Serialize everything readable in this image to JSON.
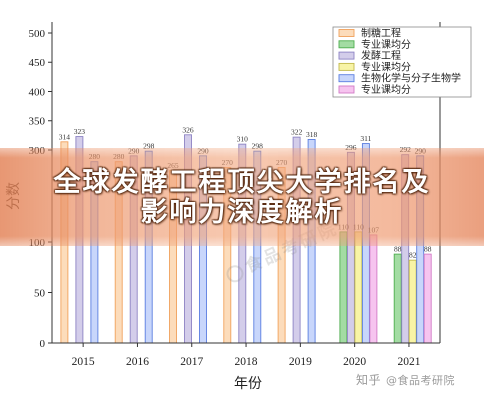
{
  "chart_data": {
    "type": "bar",
    "categories": [
      "2015",
      "2016",
      "2017",
      "2018",
      "2019",
      "2020",
      "2021"
    ],
    "xlabel": "年份",
    "ylabel": "分数",
    "ylim": [
      0,
      500
    ],
    "yticks": [
      0,
      50,
      100,
      300,
      350,
      400,
      450,
      500
    ],
    "grid": false,
    "legend_position": "top-right",
    "series": [
      {
        "name": "制糖工程",
        "color": "#fcdcbb",
        "edge": "#f0a15c",
        "values": [
          314,
          280,
          265,
          270,
          270,
          null,
          null
        ]
      },
      {
        "name": "专业课均分",
        "color": "#a3dca3",
        "edge": "#4fae4f",
        "values": [
          null,
          null,
          null,
          null,
          null,
          110,
          88
        ]
      },
      {
        "name": "发酵工程",
        "color": "#d3cdea",
        "edge": "#8d83c4",
        "values": [
          323,
          290,
          326,
          310,
          322,
          296,
          292
        ]
      },
      {
        "name": "专业课均分",
        "color": "#f8f4a6",
        "edge": "#c2b94e",
        "values": [
          null,
          null,
          null,
          null,
          null,
          110,
          82
        ]
      },
      {
        "name": "生物化学与分子生物学",
        "color": "#c8d6fb",
        "edge": "#5a7ee0",
        "values": [
          280,
          298,
          290,
          298,
          318,
          311,
          290
        ]
      },
      {
        "name": "专业课均分",
        "color": "#f6c4ef",
        "edge": "#d27ac6",
        "values": [
          null,
          null,
          null,
          null,
          null,
          107,
          88
        ]
      }
    ]
  },
  "overlay": {
    "title_line1": "全球发酵工程顶尖大学排名及",
    "title_line2": "影响力深度解析"
  },
  "watermark": {
    "center_text": "食品考研院",
    "footer_site": "知乎",
    "footer_handle": "@食品考研院"
  }
}
